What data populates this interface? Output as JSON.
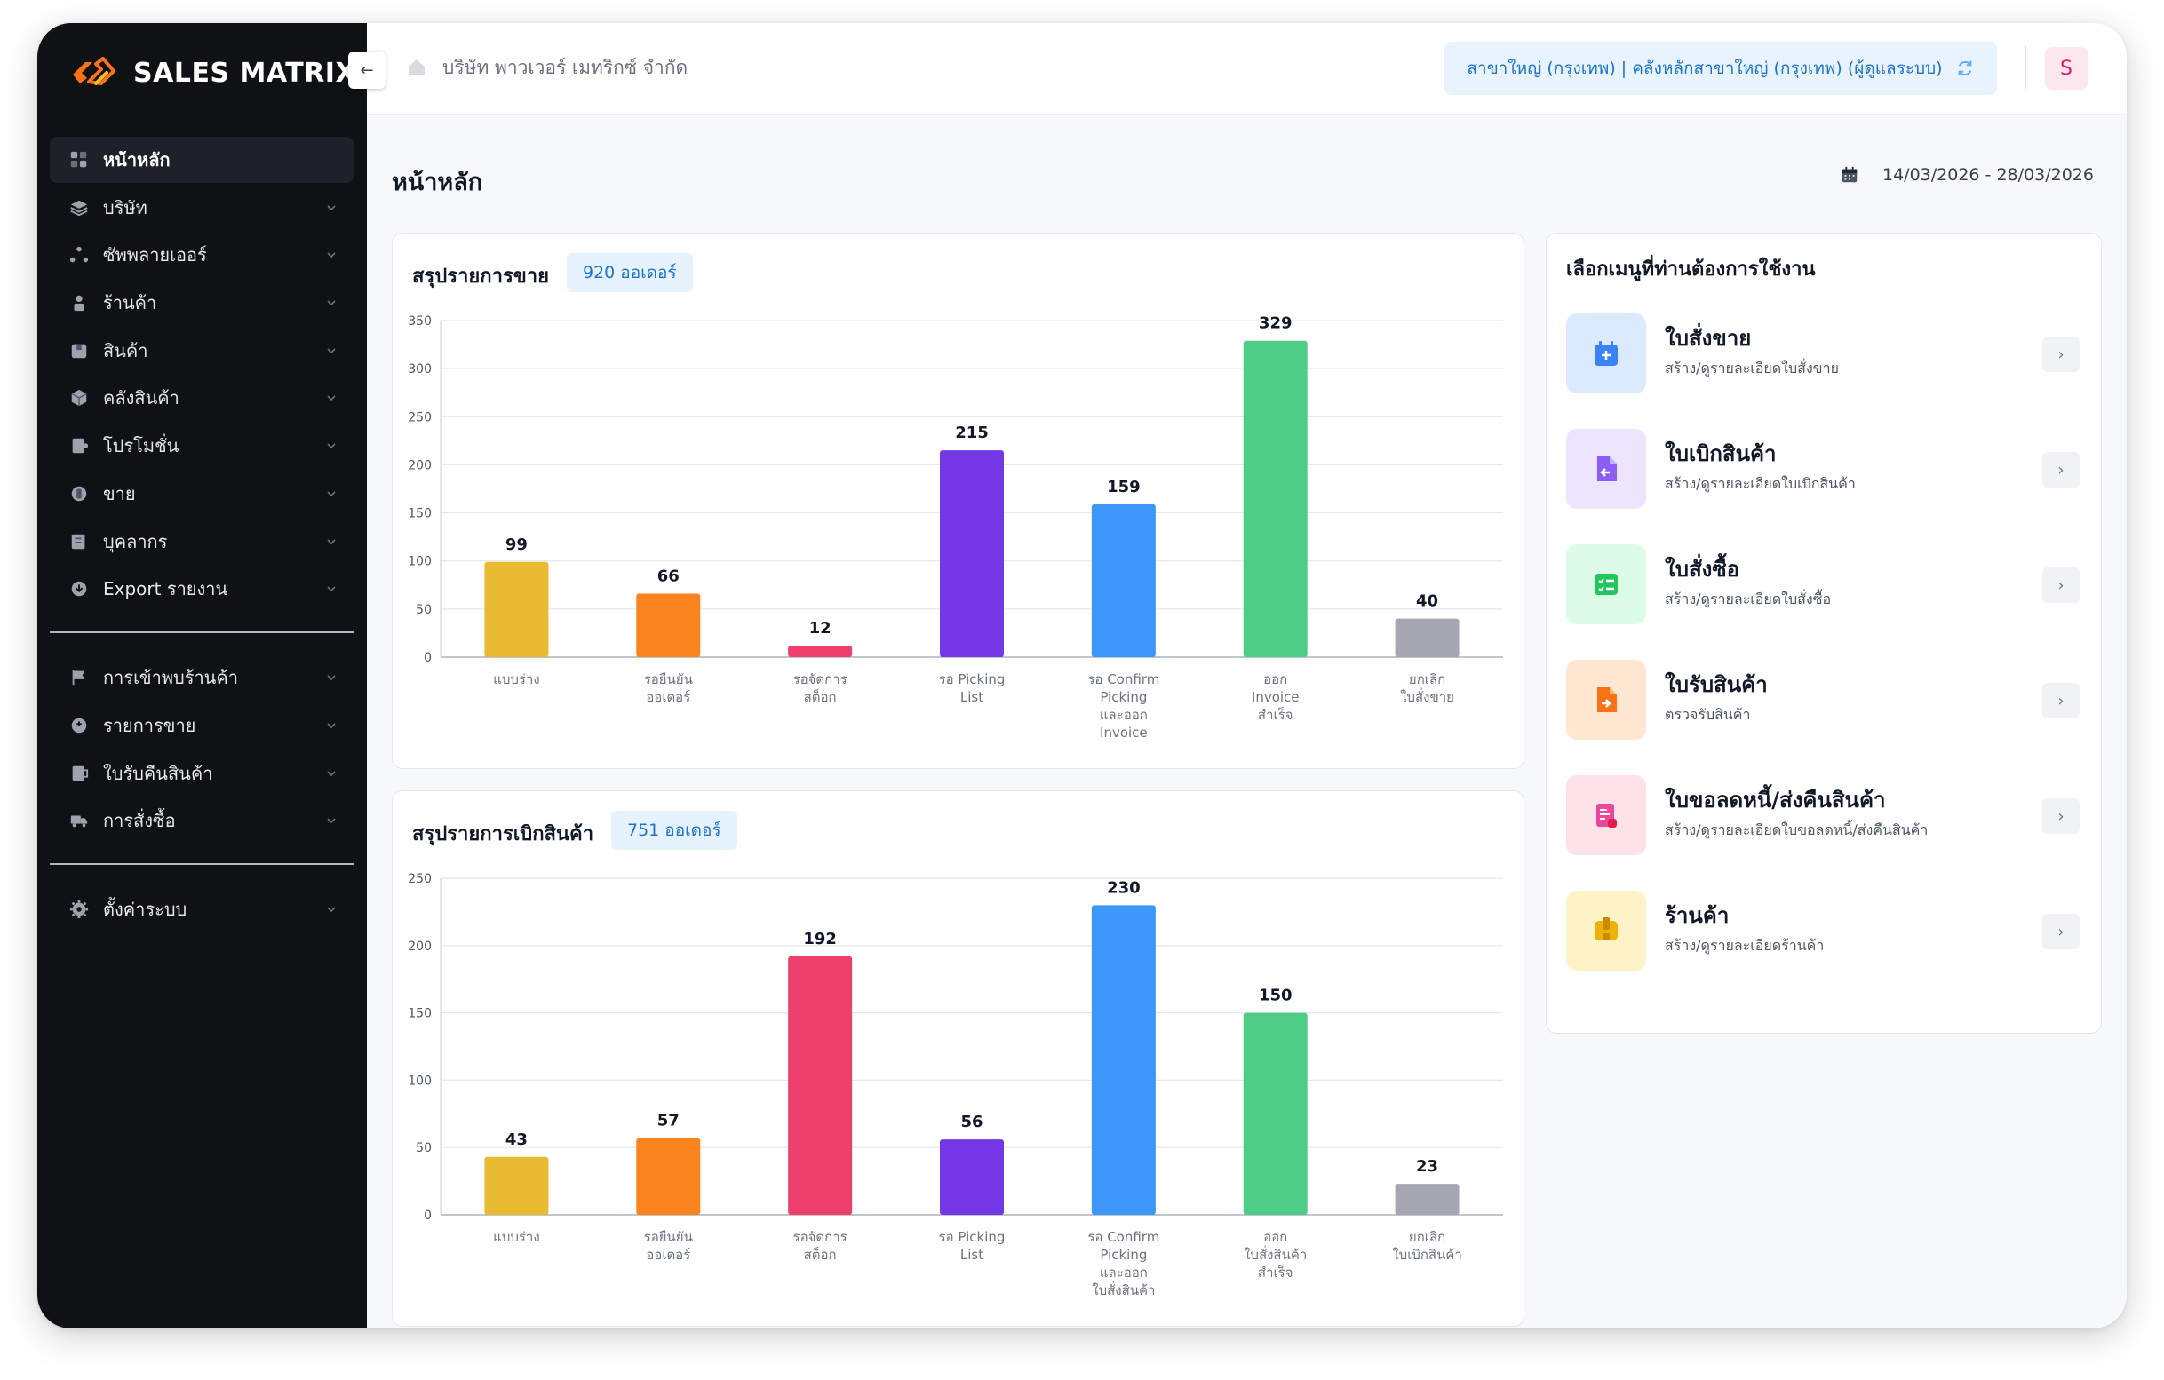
{
  "app": {
    "logo_text": "SALES MATRIX",
    "collapse_icon": "arrow-left-icon"
  },
  "header": {
    "company": "บริษัท พาวเวอร์ เมทริกซ์ จำกัด",
    "branch": "สาขาใหญ่ (กรุงเทพ) | คลังหลักสาขาใหญ่ (กรุงเทพ) (ผู้ดูแลระบบ)",
    "avatar": "S"
  },
  "sidebar": {
    "group1": [
      {
        "label": "หน้าหลัก",
        "icon": "dashboard-icon",
        "active": true
      },
      {
        "label": "บริษัท",
        "icon": "layers-icon"
      },
      {
        "label": "ซัพพลายเออร์",
        "icon": "network-icon"
      },
      {
        "label": "ร้านค้า",
        "icon": "user-icon"
      },
      {
        "label": "สินค้า",
        "icon": "package-icon"
      },
      {
        "label": "คลังสินค้า",
        "icon": "cube-icon"
      },
      {
        "label": "โปรโมชั่น",
        "icon": "promotion-icon"
      },
      {
        "label": "ขาย",
        "icon": "sale-icon"
      },
      {
        "label": "บุคลากร",
        "icon": "id-card-icon"
      },
      {
        "label": "Export รายงาน",
        "icon": "export-icon"
      }
    ],
    "group2": [
      {
        "label": "การเข้าพบร้านค้า",
        "icon": "flag-icon"
      },
      {
        "label": "รายการขาย",
        "icon": "sales-list-icon"
      },
      {
        "label": "ใบรับคืนสินค้า",
        "icon": "return-icon"
      },
      {
        "label": "การสั่งซื้อ",
        "icon": "truck-icon"
      }
    ],
    "group3": [
      {
        "label": "ตั้งค่าระบบ",
        "icon": "gear-icon"
      }
    ]
  },
  "main": {
    "title": "หน้าหลัก",
    "date_range": "14/03/2026 - 28/03/2026"
  },
  "sales_card": {
    "title": "สรุปรายการขาย",
    "badge": "920 ออเดอร์"
  },
  "withdraw_card": {
    "title": "สรุปรายการเบิกสินค้า",
    "badge": "751 ออเดอร์"
  },
  "chart_data": [
    {
      "type": "bar",
      "title": "สรุปรายการขาย",
      "categories": [
        [
          "แบบร่าง"
        ],
        [
          "รอยืนยัน",
          "ออเดอร์"
        ],
        [
          "รอจัดการ",
          "สต็อก"
        ],
        [
          "รอ Picking",
          "List"
        ],
        [
          "รอ Confirm",
          "Picking",
          "และออก",
          "Invoice"
        ],
        [
          "ออก",
          "Invoice",
          "สำเร็จ"
        ],
        [
          "ยกเลิก",
          "ใบสั่งขาย"
        ]
      ],
      "values": [
        99,
        66,
        12,
        215,
        159,
        329,
        40
      ],
      "colors": [
        "#e9bb33",
        "#fb841f",
        "#ee3f6d",
        "#7437e6",
        "#3d97f8",
        "#4fcd87",
        "#a5a6b2"
      ],
      "ylim": [
        0,
        350
      ],
      "yticks": [
        0,
        50,
        100,
        150,
        200,
        250,
        300,
        350
      ],
      "grid": true
    },
    {
      "type": "bar",
      "title": "สรุปรายการเบิกสินค้า",
      "categories": [
        [
          "แบบร่าง"
        ],
        [
          "รอยืนยัน",
          "ออเดอร์"
        ],
        [
          "รอจัดการ",
          "สต็อก"
        ],
        [
          "รอ Picking",
          "List"
        ],
        [
          "รอ Confirm",
          "Picking",
          "และออก",
          "ใบสั่งสินค้า"
        ],
        [
          "ออก",
          "ใบสั่งสินค้า",
          "สำเร็จ"
        ],
        [
          "ยกเลิก",
          "ใบเบิกสินค้า"
        ]
      ],
      "values": [
        43,
        57,
        192,
        56,
        230,
        150,
        23
      ],
      "colors": [
        "#e9bb33",
        "#fb841f",
        "#ee3f6d",
        "#7437e6",
        "#3d97f8",
        "#4fcd87",
        "#a5a6b2"
      ],
      "ylim": [
        0,
        250
      ],
      "yticks": [
        0,
        50,
        100,
        150,
        200,
        250
      ],
      "grid": true
    }
  ],
  "menu": {
    "title": "เลือกเมนูที่ท่านต้องการใช้งาน",
    "items": [
      {
        "title": "ใบสั่งขาย",
        "sub": "สร้าง/ดูรายละเอียดใบสั่งขาย",
        "icon": "calendar-plus-icon",
        "bg": "#dbeafe",
        "fg": "#3b82f6"
      },
      {
        "title": "ใบเบิกสินค้า",
        "sub": "สร้าง/ดูรายละเอียดใบเบิกสินค้า",
        "icon": "document-return-icon",
        "bg": "#ede4fd",
        "fg": "#8b5cf6"
      },
      {
        "title": "ใบสั่งซื้อ",
        "sub": "สร้าง/ดูรายละเอียดใบสั่งซื้อ",
        "icon": "checklist-icon",
        "bg": "#dcfce7",
        "fg": "#22c55e"
      },
      {
        "title": "ใบรับสินค้า",
        "sub": "ตรวจรับสินค้า",
        "icon": "document-in-icon",
        "bg": "#ffe7d1",
        "fg": "#f97316"
      },
      {
        "title": "ใบขอลดหนี้/ส่งคืนสินค้า",
        "sub": "สร้าง/ดูรายละเอียดใบขอลดหนี้/ส่งคืนสินค้า",
        "icon": "credit-note-icon",
        "bg": "#fde2e7",
        "fg": "#ec4899"
      },
      {
        "title": "ร้านค้า",
        "sub": "สร้าง/ดูรายละเอียดร้านค้า",
        "icon": "store-icon",
        "bg": "#fef3c7",
        "fg": "#eab308"
      }
    ]
  }
}
